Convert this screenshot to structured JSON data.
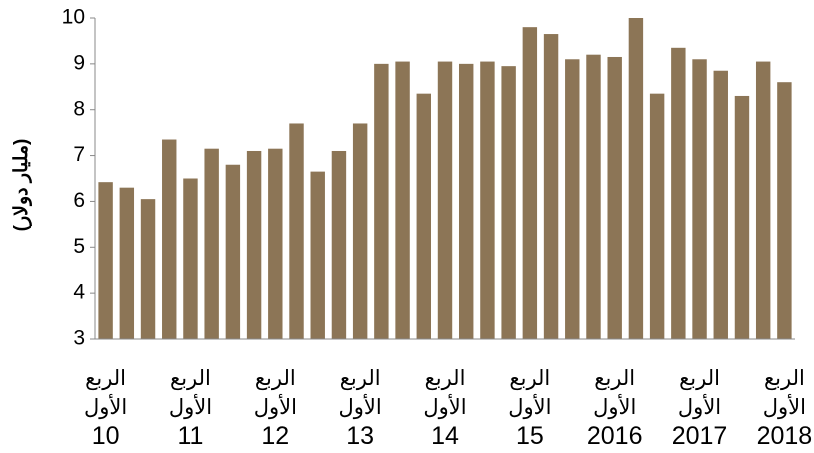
{
  "chart_data": {
    "type": "bar",
    "y_label": "(مليار دولار)",
    "categories": [
      "الربع\nالأول\n10",
      null,
      null,
      null,
      "الربع\nالأول\n11",
      null,
      null,
      null,
      "الربع\nالأول\n12",
      null,
      null,
      null,
      "الربع\nالأول\n13",
      null,
      null,
      null,
      "الربع\nالأول\n14",
      null,
      null,
      null,
      "الربع\nالأول\n15",
      null,
      null,
      null,
      "الربع\nالأول\n2016",
      null,
      null,
      null,
      "الربع\nالأول\n2017",
      null,
      null,
      null,
      "الربع\nالأول\n2018"
    ],
    "values": [
      6.42,
      6.3,
      6.05,
      7.35,
      6.5,
      7.15,
      6.8,
      7.1,
      7.15,
      7.7,
      6.65,
      7.1,
      7.7,
      9.0,
      9.05,
      8.35,
      9.05,
      9.0,
      9.05,
      8.95,
      9.8,
      9.65,
      9.1,
      9.2,
      9.15,
      10.0,
      8.35,
      9.35,
      9.1,
      8.85,
      8.3,
      9.05,
      8.6
    ],
    "color": "#8c7556",
    "ylim": [
      3,
      10
    ],
    "yticks": [
      3,
      4,
      5,
      6,
      7,
      8,
      9,
      10
    ],
    "grid": false
  }
}
